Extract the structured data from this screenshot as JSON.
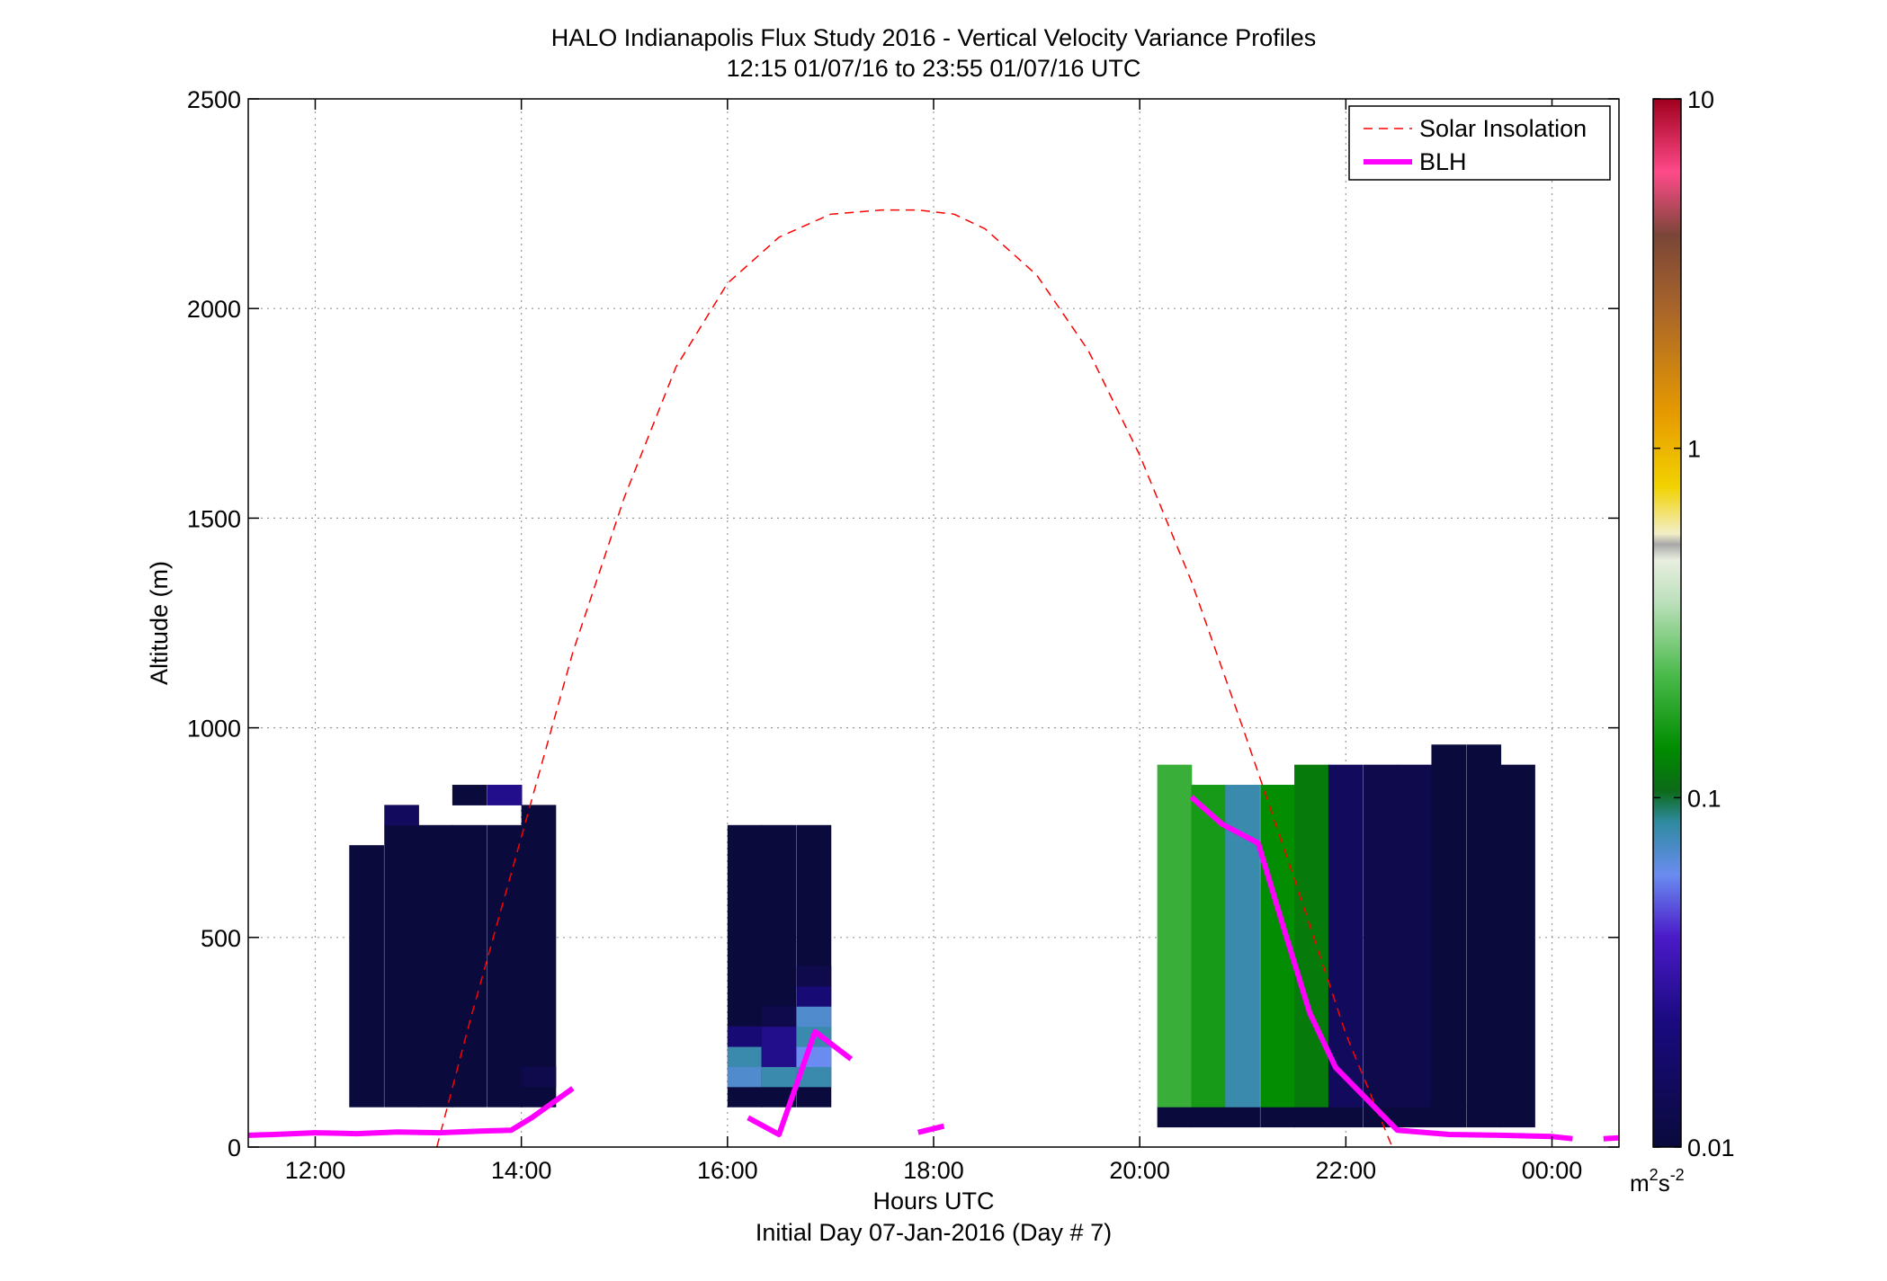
{
  "chart_data": {
    "type": "heatmap",
    "title": "HALO Indianapolis Flux Study 2016 - Vertical Velocity Variance Profiles",
    "subtitle": "12:15 01/07/16 to 23:55 01/07/16  UTC",
    "xlabel": "Hours UTC",
    "xlabel2": "Initial Day 07-Jan-2016 (Day # 7)",
    "ylabel": "Altitude (m)",
    "xlim": [
      11.35,
      24.65
    ],
    "ylim": [
      0,
      2500
    ],
    "grid": true,
    "x_ticks": [
      12,
      14,
      16,
      18,
      20,
      22,
      24
    ],
    "x_tick_labels": [
      "12:00",
      "14:00",
      "16:00",
      "18:00",
      "20:00",
      "22:00",
      "00:00"
    ],
    "y_ticks": [
      0,
      500,
      1000,
      1500,
      2000,
      2500
    ],
    "y_tick_labels": [
      "0",
      "500",
      "1000",
      "1500",
      "2000",
      "2500"
    ],
    "legend": {
      "position": "top-right",
      "entries": [
        {
          "label": "Solar Insolation",
          "style": "dashed",
          "color": "#ff0000"
        },
        {
          "label": "BLH",
          "style": "solid",
          "color": "#ff00ff"
        }
      ]
    },
    "colorbar": {
      "scale": "log",
      "range": [
        0.01,
        10
      ],
      "tick_values": [
        0.01,
        0.1,
        1,
        10
      ],
      "tick_labels": [
        "0.01",
        "0.1",
        "1",
        "10"
      ],
      "unit_base": "m",
      "unit_sup1": "2",
      "unit_mid": "s",
      "unit_sup2": "-2"
    },
    "heatmap": {
      "dx_hours": 0.333,
      "dz_m": 48,
      "columns": [
        {
          "t": 12.33,
          "z0": 96,
          "z1": 720,
          "v": [
            {
              "z0": 96,
              "z1": 720,
              "c": 0.01
            }
          ]
        },
        {
          "t": 12.67,
          "z0": 96,
          "z1": 768,
          "v": [
            {
              "z0": 96,
              "z1": 768,
              "c": 0.01
            },
            {
              "z0": 768,
              "z1": 816,
              "c": 0.015
            }
          ]
        },
        {
          "t": 13.0,
          "z0": 96,
          "z1": 768,
          "v": [
            {
              "z0": 96,
              "z1": 768,
              "c": 0.01
            }
          ]
        },
        {
          "t": 13.33,
          "z0": 96,
          "z1": 864,
          "v": [
            {
              "z0": 96,
              "z1": 768,
              "c": 0.01
            },
            {
              "z0": 816,
              "z1": 864,
              "c": 0.01
            }
          ]
        },
        {
          "t": 13.67,
          "z0": 96,
          "z1": 864,
          "v": [
            {
              "z0": 96,
              "z1": 768,
              "c": 0.01
            },
            {
              "z0": 816,
              "z1": 864,
              "c": 0.025
            }
          ]
        },
        {
          "t": 14.0,
          "z0": 96,
          "z1": 816,
          "v": [
            {
              "z0": 96,
              "z1": 816,
              "c": 0.01
            },
            {
              "z0": 144,
              "z1": 192,
              "c": 0.012
            }
          ]
        },
        {
          "t": 16.0,
          "z0": 96,
          "z1": 768,
          "v": [
            {
              "z0": 96,
              "z1": 768,
              "c": 0.01
            },
            {
              "z0": 144,
              "z1": 192,
              "c": 0.07
            },
            {
              "z0": 192,
              "z1": 240,
              "c": 0.08
            },
            {
              "z0": 240,
              "z1": 288,
              "c": 0.02
            }
          ]
        },
        {
          "t": 16.33,
          "z0": 96,
          "z1": 768,
          "v": [
            {
              "z0": 96,
              "z1": 768,
              "c": 0.01
            },
            {
              "z0": 144,
              "z1": 192,
              "c": 0.08
            },
            {
              "z0": 192,
              "z1": 288,
              "c": 0.025
            },
            {
              "z0": 288,
              "z1": 336,
              "c": 0.012
            }
          ]
        },
        {
          "t": 16.67,
          "z0": 96,
          "z1": 768,
          "v": [
            {
              "z0": 96,
              "z1": 768,
              "c": 0.01
            },
            {
              "z0": 144,
              "z1": 192,
              "c": 0.08
            },
            {
              "z0": 192,
              "z1": 240,
              "c": 0.06
            },
            {
              "z0": 240,
              "z1": 288,
              "c": 0.08
            },
            {
              "z0": 288,
              "z1": 336,
              "c": 0.07
            },
            {
              "z0": 336,
              "z1": 384,
              "c": 0.02
            },
            {
              "z0": 384,
              "z1": 432,
              "c": 0.012
            }
          ]
        },
        {
          "t": 20.17,
          "z0": 96,
          "z1": 912,
          "v": [
            {
              "z0": 48,
              "z1": 96,
              "c": 0.01
            },
            {
              "z0": 96,
              "z1": 912,
              "c": 0.2
            }
          ]
        },
        {
          "t": 20.5,
          "z0": 96,
          "z1": 864,
          "v": [
            {
              "z0": 48,
              "z1": 96,
              "c": 0.01
            },
            {
              "z0": 96,
              "z1": 864,
              "c": 0.16
            }
          ]
        },
        {
          "t": 20.83,
          "z0": 96,
          "z1": 864,
          "v": [
            {
              "z0": 48,
              "z1": 96,
              "c": 0.01
            },
            {
              "z0": 96,
              "z1": 864,
              "c": 0.08
            }
          ]
        },
        {
          "t": 21.17,
          "z0": 96,
          "z1": 864,
          "v": [
            {
              "z0": 48,
              "z1": 96,
              "c": 0.01
            },
            {
              "z0": 96,
              "z1": 864,
              "c": 0.14
            }
          ]
        },
        {
          "t": 21.5,
          "z0": 96,
          "z1": 912,
          "v": [
            {
              "z0": 48,
              "z1": 96,
              "c": 0.01
            },
            {
              "z0": 96,
              "z1": 912,
              "c": 0.12
            }
          ]
        },
        {
          "t": 21.83,
          "z0": 96,
          "z1": 912,
          "v": [
            {
              "z0": 48,
              "z1": 96,
              "c": 0.01
            },
            {
              "z0": 96,
              "z1": 912,
              "c": 0.015
            }
          ]
        },
        {
          "t": 22.17,
          "z0": 96,
          "z1": 912,
          "v": [
            {
              "z0": 48,
              "z1": 96,
              "c": 0.01
            },
            {
              "z0": 96,
              "z1": 912,
              "c": 0.012
            }
          ]
        },
        {
          "t": 22.5,
          "z0": 96,
          "z1": 912,
          "v": [
            {
              "z0": 48,
              "z1": 96,
              "c": 0.01
            },
            {
              "z0": 96,
              "z1": 912,
              "c": 0.012
            }
          ]
        },
        {
          "t": 22.83,
          "z0": 96,
          "z1": 960,
          "v": [
            {
              "z0": 48,
              "z1": 96,
              "c": 0.01
            },
            {
              "z0": 96,
              "z1": 960,
              "c": 0.01
            }
          ]
        },
        {
          "t": 23.17,
          "z0": 96,
          "z1": 960,
          "v": [
            {
              "z0": 48,
              "z1": 96,
              "c": 0.01
            },
            {
              "z0": 96,
              "z1": 960,
              "c": 0.01
            }
          ]
        },
        {
          "t": 23.5,
          "z0": 96,
          "z1": 912,
          "v": [
            {
              "z0": 48,
              "z1": 96,
              "c": 0.01
            },
            {
              "z0": 96,
              "z1": 912,
              "c": 0.01
            }
          ]
        }
      ]
    },
    "series": [
      {
        "name": "Solar Insolation",
        "x": [
          13.18,
          13.5,
          14.0,
          14.5,
          15.0,
          15.5,
          16.0,
          16.5,
          17.0,
          17.5,
          17.85,
          18.2,
          18.5,
          19.0,
          19.5,
          20.0,
          20.5,
          21.0,
          21.5,
          22.0,
          22.45
        ],
        "y": [
          0,
          300,
          740,
          1180,
          1550,
          1860,
          2060,
          2170,
          2225,
          2235,
          2235,
          2225,
          2190,
          2080,
          1900,
          1650,
          1350,
          1000,
          640,
          270,
          0
        ]
      },
      {
        "name": "BLH",
        "segments": [
          {
            "x": [
              11.35,
              11.6,
              12.0,
              12.4,
              12.8,
              13.2,
              13.6,
              13.9,
              14.1,
              14.5
            ],
            "y": [
              28,
              30,
              34,
              32,
              36,
              34,
              38,
              40,
              70,
              140
            ]
          },
          {
            "x": [
              16.2,
              16.5,
              16.85,
              17.2
            ],
            "y": [
              70,
              30,
              275,
              210
            ]
          },
          {
            "x": [
              17.85,
              18.1
            ],
            "y": [
              35,
              50
            ]
          },
          {
            "x": [
              20.5,
              20.8,
              21.15,
              21.4,
              21.65,
              21.9,
              22.1,
              22.5,
              23.0,
              23.5,
              24.0,
              24.2
            ],
            "y": [
              835,
              770,
              725,
              520,
              320,
              190,
              140,
              40,
              30,
              28,
              25,
              20
            ]
          },
          {
            "x": [
              24.5,
              24.65
            ],
            "y": [
              20,
              22
            ]
          }
        ]
      }
    ]
  }
}
